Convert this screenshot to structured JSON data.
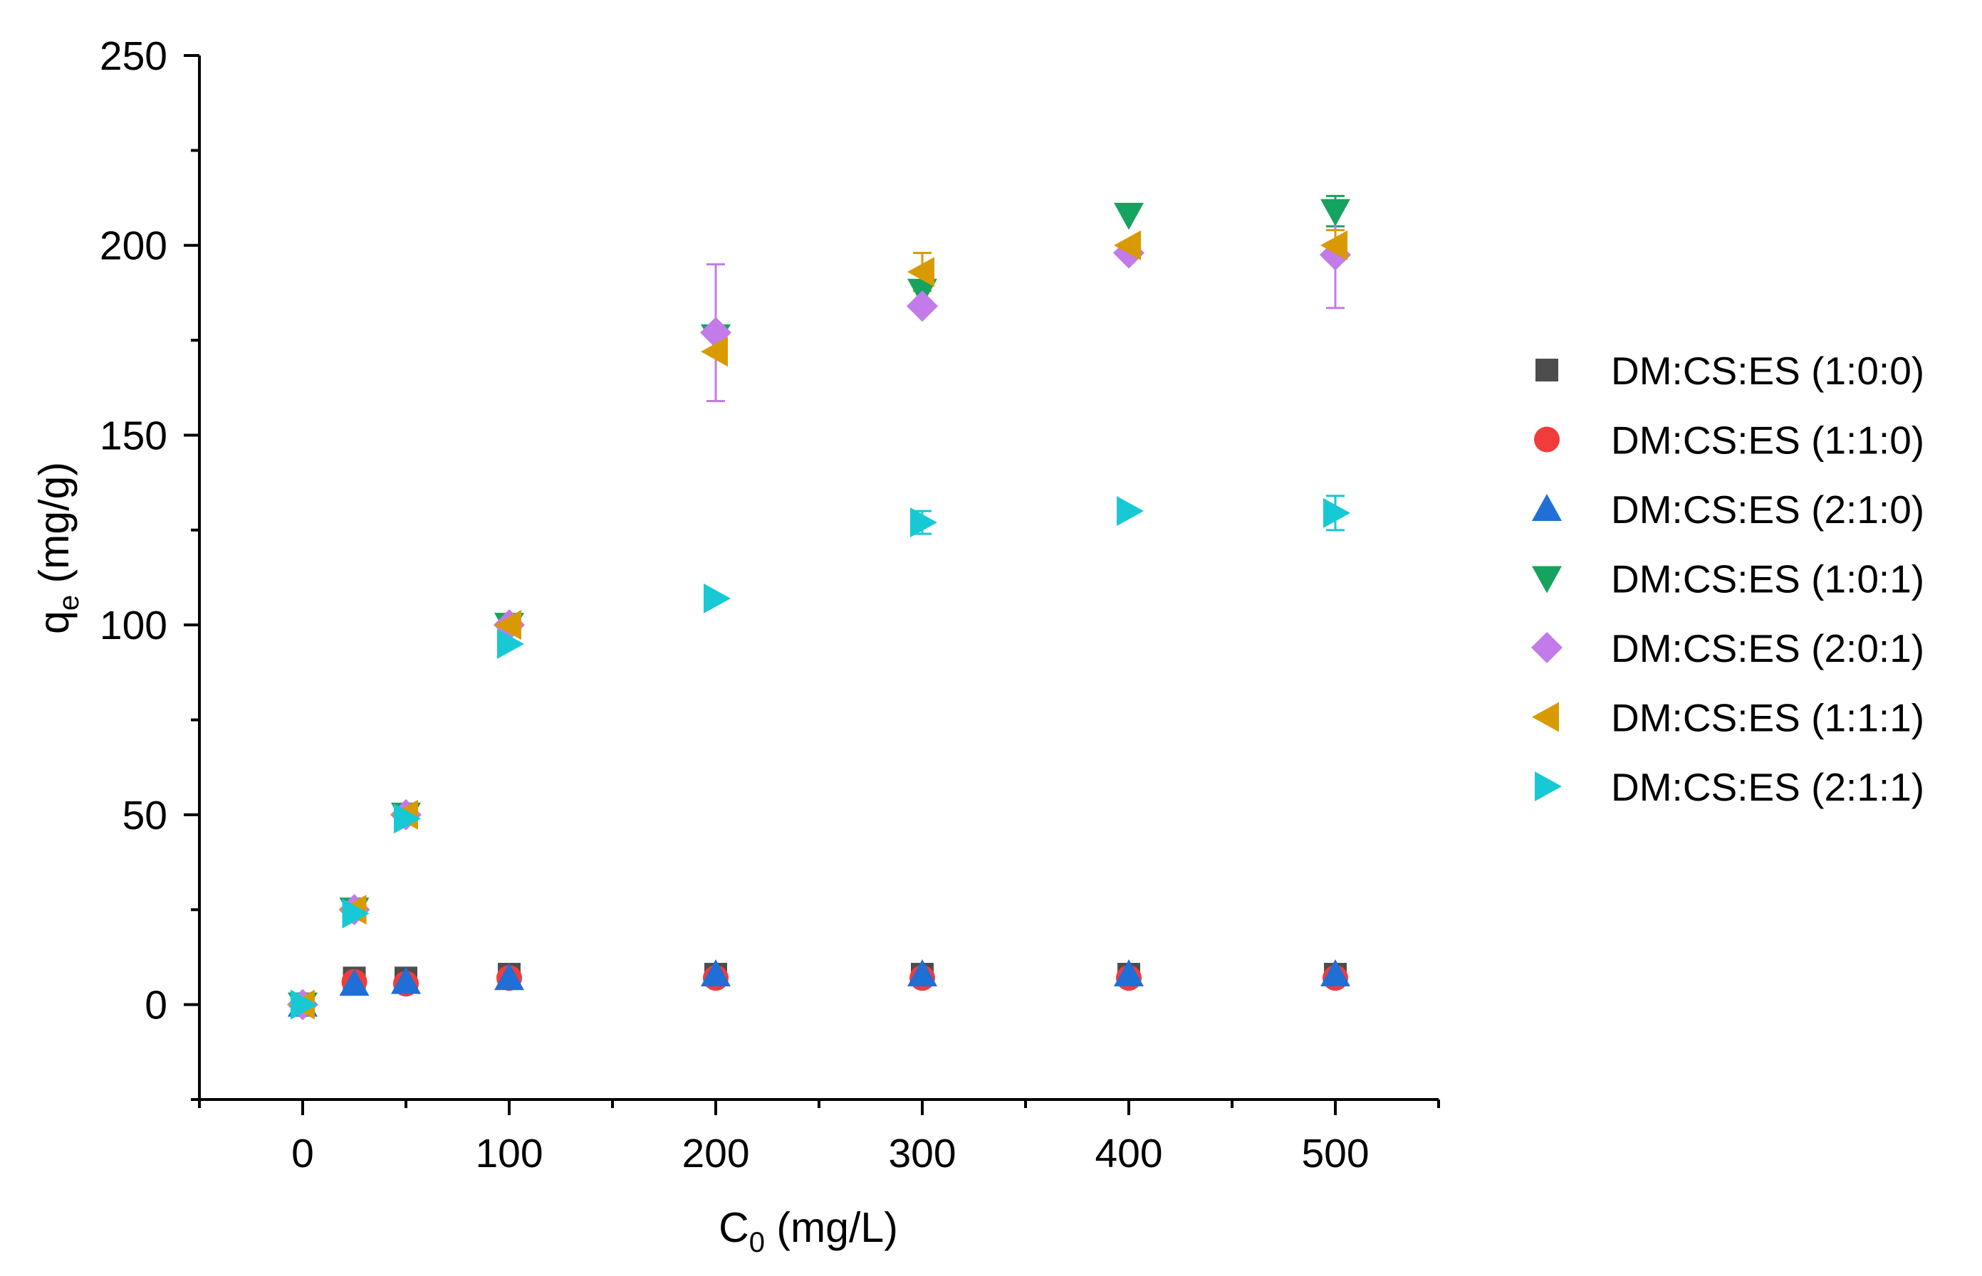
{
  "chart_data": {
    "type": "scatter",
    "xlabel": {
      "main": "C",
      "sub": "0",
      "rest": " (mg/L)"
    },
    "ylabel": {
      "main": "q",
      "sub": "e",
      "rest": " (mg/g)"
    },
    "xlim": [
      -50,
      550
    ],
    "ylim": [
      -25,
      250
    ],
    "xticks": [
      0,
      100,
      200,
      300,
      400,
      500
    ],
    "yticks": [
      0,
      50,
      100,
      150,
      200,
      250
    ],
    "x": [
      0,
      25,
      50,
      100,
      200,
      300,
      400,
      500
    ],
    "legend_position": "right",
    "series": [
      {
        "name": "DM:CS:ES (1:0:0)",
        "marker": "square",
        "color": "#4d4d4d",
        "values": [
          0,
          7,
          7,
          8,
          8,
          8,
          8,
          8
        ],
        "errors": [
          0,
          0,
          0,
          0,
          0,
          0,
          0,
          0
        ]
      },
      {
        "name": "DM:CS:ES (1:1:0)",
        "marker": "circle",
        "color": "#f23c3c",
        "values": [
          0,
          6,
          5.5,
          7,
          7,
          7,
          7,
          7
        ],
        "errors": [
          0,
          0,
          0,
          0,
          0,
          0,
          0,
          0
        ]
      },
      {
        "name": "DM:CS:ES (2:1:0)",
        "marker": "triangle-up",
        "color": "#1f6fd6",
        "values": [
          0,
          5.5,
          6,
          7,
          8,
          8,
          8,
          8
        ],
        "errors": [
          0,
          0,
          0,
          0,
          0,
          0,
          0,
          0
        ]
      },
      {
        "name": "DM:CS:ES (1:0:1)",
        "marker": "triangle-down",
        "color": "#16a35f",
        "values": [
          0,
          25,
          50,
          100,
          176,
          188,
          208,
          209
        ],
        "errors": [
          0,
          0,
          0,
          0,
          0,
          0,
          0,
          4
        ]
      },
      {
        "name": "DM:CS:ES (2:0:1)",
        "marker": "diamond",
        "color": "#c27be8",
        "values": [
          0,
          25,
          50,
          100,
          177,
          184,
          198,
          197.5
        ],
        "errors": [
          0,
          0,
          0,
          0,
          18,
          0,
          0,
          14
        ]
      },
      {
        "name": "DM:CS:ES (1:1:1)",
        "marker": "triangle-left",
        "color": "#d99a00",
        "values": [
          0,
          25,
          50,
          100,
          172,
          193,
          200,
          200
        ],
        "errors": [
          0,
          0,
          0,
          0,
          0,
          5,
          0,
          4
        ]
      },
      {
        "name": "DM:CS:ES (2:1:1)",
        "marker": "triangle-right",
        "color": "#17c9d4",
        "values": [
          0,
          24,
          49,
          95,
          107,
          127,
          130,
          129.5
        ],
        "errors": [
          0,
          0,
          0,
          0,
          0,
          3,
          0,
          4.5
        ]
      }
    ]
  }
}
